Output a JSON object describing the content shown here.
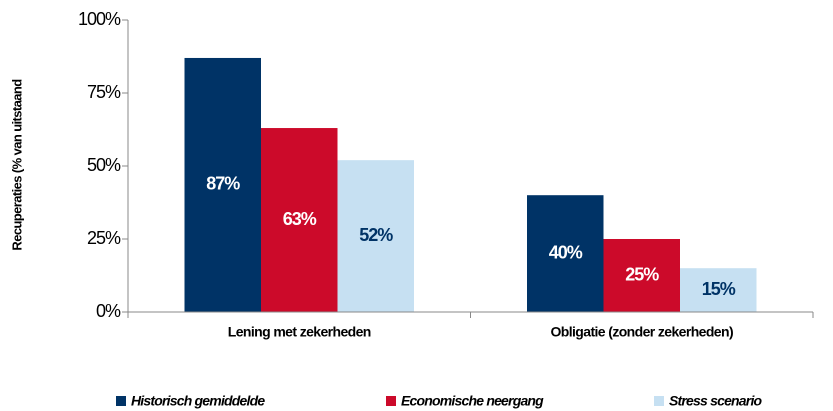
{
  "chart_data": {
    "type": "bar",
    "y_label": "Recuperaties (% van uitstaand",
    "categories": [
      "Lening met zekerheden",
      "Obligatie (zonder zekerheden)"
    ],
    "series": [
      {
        "name": "Historisch gemiddelde",
        "color": "#003366",
        "label_color": "#ffffff",
        "values": [
          87,
          40
        ],
        "value_labels": [
          "87%",
          "40%"
        ]
      },
      {
        "name": "Economische neergang",
        "color": "#cc0a2a",
        "label_color": "#ffffff",
        "values": [
          63,
          25
        ],
        "value_labels": [
          "63%",
          "25%"
        ]
      },
      {
        "name": "Stress scenario",
        "color": "#c6e0f2",
        "label_color": "#003366",
        "values": [
          52,
          15
        ],
        "value_labels": [
          "52%",
          "15%"
        ]
      }
    ],
    "ylim": [
      0,
      100
    ],
    "yticks": [
      {
        "value": 0,
        "label": "0%"
      },
      {
        "value": 25,
        "label": "25%"
      },
      {
        "value": 50,
        "label": "50%"
      },
      {
        "value": 75,
        "label": "75%"
      },
      {
        "value": 100,
        "label": "100%"
      }
    ],
    "grid": false,
    "legend": "bottom"
  }
}
